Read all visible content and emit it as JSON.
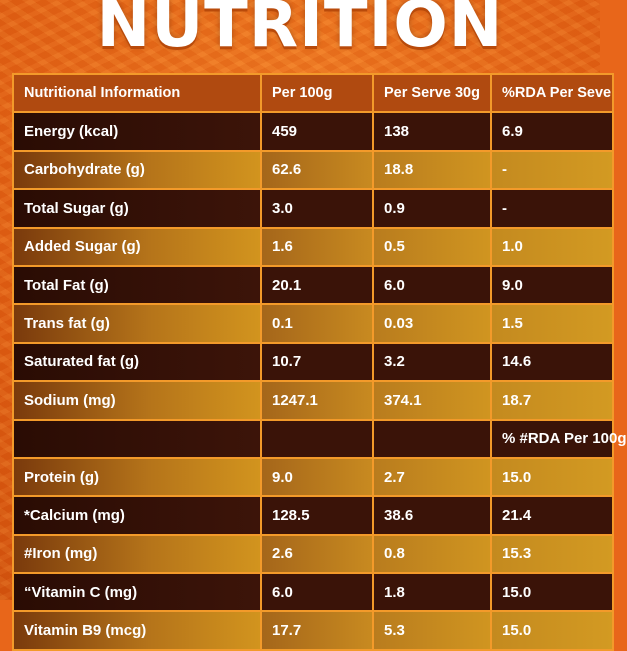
{
  "title": "NUTRITION",
  "table": {
    "headers": [
      "Nutritional Information",
      "Per 100g",
      "Per Serve 30g",
      "%RDA Per Seve"
    ],
    "rows": [
      {
        "shade": "dark",
        "cells": [
          "Energy (kcal)",
          "459",
          "138",
          "6.9"
        ]
      },
      {
        "shade": "light",
        "cells": [
          "Carbohydrate (g)",
          "62.6",
          "18.8",
          "-"
        ]
      },
      {
        "shade": "dark",
        "cells": [
          "Total Sugar (g)",
          "3.0",
          "0.9",
          "-"
        ]
      },
      {
        "shade": "light",
        "cells": [
          "Added Sugar (g)",
          "1.6",
          "0.5",
          "1.0"
        ]
      },
      {
        "shade": "dark",
        "cells": [
          "Total Fat (g)",
          "20.1",
          "6.0",
          "9.0"
        ]
      },
      {
        "shade": "light",
        "cells": [
          "Trans fat (g)",
          "0.1",
          "0.03",
          "1.5"
        ]
      },
      {
        "shade": "dark",
        "cells": [
          "Saturated fat (g)",
          "10.7",
          "3.2",
          "14.6"
        ]
      },
      {
        "shade": "light",
        "cells": [
          "Sodium (mg)",
          "1247.1",
          "374.1",
          "18.7"
        ]
      },
      {
        "shade": "dark",
        "cells": [
          "",
          "",
          "",
          "% #RDA Per 100g"
        ]
      },
      {
        "shade": "light",
        "cells": [
          "Protein (g)",
          "9.0",
          "2.7",
          "15.0"
        ]
      },
      {
        "shade": "dark",
        "cells": [
          "*Calcium (mg)",
          "128.5",
          "38.6",
          "21.4"
        ]
      },
      {
        "shade": "light",
        "cells": [
          "#Iron (mg)",
          "2.6",
          "0.8",
          "15.3"
        ]
      },
      {
        "shade": "dark",
        "cells": [
          "“Vitamin C (mg)",
          "6.0",
          "1.8",
          "15.0"
        ]
      },
      {
        "shade": "light",
        "cells": [
          "Vitamin B9 (mcg)",
          "17.7",
          "5.3",
          "15.0"
        ]
      }
    ]
  },
  "colors": {
    "background": "#e8661a",
    "title_text": "#ffffff",
    "header_bg": "#b04a10",
    "row_dark": "#3a1308",
    "row_light": "#c88a20",
    "cell_border": "#f39a2a"
  }
}
